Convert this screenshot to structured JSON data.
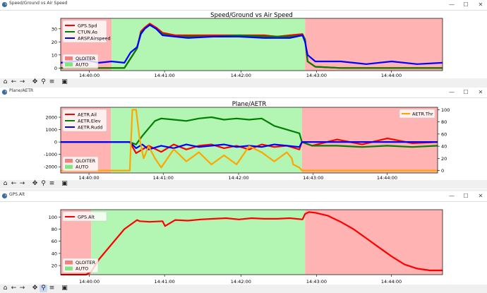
{
  "windows": [
    {
      "title": "Speed/Ground vs Air Speed",
      "chart_data": {
        "type": "line",
        "title": "Speed/Ground vs Air Speed",
        "x_ticks": [
          "14:40:00",
          "14:41:00",
          "14:42:00",
          "14:43:00",
          "14:44:00"
        ],
        "y_ticks": [
          0,
          10,
          20,
          30
        ],
        "ylim": [
          -2,
          38
        ],
        "xlim": [
          0,
          300
        ],
        "legend": [
          "GPS.Spd",
          "CTUN.As",
          "ARSP.Airspeed"
        ],
        "regions_legend": [
          "QLOITER",
          "AUTO"
        ],
        "regions": [
          {
            "mode": "QLOITER",
            "start": 0,
            "end": 40
          },
          {
            "mode": "AUTO",
            "start": 40,
            "end": 192
          },
          {
            "mode": "QLOITER",
            "start": 192,
            "end": 300
          }
        ],
        "series": [
          {
            "name": "GPS.Spd",
            "color": "#ff0000",
            "x": [
              0,
              40,
              50,
              60,
              63,
              66,
              70,
              75,
              80,
              90,
              100,
              120,
              140,
              160,
              170,
              180,
              190,
              192,
              194,
              200,
              220,
              240,
              260,
              280,
              300
            ],
            "y": [
              0,
              0,
              0,
              15,
              28,
              31,
              34,
              31,
              27,
              25,
              25,
              25,
              25,
              25,
              24,
              25,
              26,
              22,
              5,
              1,
              0,
              0,
              0,
              0,
              0
            ]
          },
          {
            "name": "CTUN.As",
            "color": "#008000",
            "x": [
              0,
              40,
              50,
              60,
              63,
              66,
              70,
              75,
              80,
              90,
              100,
              120,
              140,
              160,
              170,
              180,
              190,
              192,
              194,
              200,
              220,
              240,
              260,
              280,
              300
            ],
            "y": [
              0,
              0,
              0,
              15,
              27,
              30,
              33,
              30,
              26,
              24,
              24,
              24,
              25,
              24,
              24,
              24,
              25,
              22,
              5,
              1,
              0,
              0,
              0,
              0,
              0
            ]
          },
          {
            "name": "ARSP.Airspeed",
            "color": "#0000ff",
            "x": [
              0,
              10,
              20,
              30,
              40,
              50,
              55,
              60,
              63,
              66,
              70,
              75,
              80,
              90,
              100,
              120,
              140,
              160,
              170,
              180,
              190,
              192,
              194,
              200,
              220,
              240,
              260,
              280,
              300
            ],
            "y": [
              4,
              5,
              6,
              4,
              5,
              4,
              12,
              16,
              26,
              30,
              33,
              30,
              25,
              24,
              23,
              24,
              24,
              23,
              23,
              23,
              25,
              20,
              10,
              5,
              5,
              3,
              5,
              3,
              4
            ]
          }
        ]
      }
    },
    {
      "title": "Plane/AETR",
      "chart_data": {
        "type": "line",
        "title": "Plane/AETR",
        "x_ticks": [
          "14:40:00",
          "14:41:00",
          "14:42:00",
          "14:43:00",
          "14:44:00"
        ],
        "y_ticks": [
          -2000,
          -1000,
          0,
          1000,
          2000
        ],
        "y2_ticks": [
          0,
          20,
          40,
          60,
          80,
          100
        ],
        "ylim": [
          -2500,
          2800
        ],
        "y2lim": [
          -4,
          104
        ],
        "xlim": [
          0,
          300
        ],
        "legend": [
          "AETR.Ail",
          "AETR.Elev",
          "AETR.Rudd"
        ],
        "legend2": [
          "AETR.Thr"
        ],
        "regions_legend": [
          "QLOITER",
          "AUTO"
        ],
        "regions": [
          {
            "mode": "QLOITER",
            "start": 0,
            "end": 40
          },
          {
            "mode": "AUTO",
            "start": 40,
            "end": 192
          },
          {
            "mode": "QLOITER",
            "start": 192,
            "end": 300
          }
        ],
        "series": [
          {
            "name": "AETR.Ail",
            "color": "#ff0000",
            "axis": "left",
            "x": [
              0,
              40,
              55,
              60,
              65,
              70,
              80,
              90,
              100,
              110,
              120,
              130,
              140,
              150,
              160,
              170,
              180,
              190,
              192,
              200,
              220,
              240,
              260,
              280,
              300
            ],
            "y": [
              0,
              0,
              0,
              -900,
              -600,
              -300,
              -800,
              -200,
              -600,
              -300,
              -200,
              -500,
              -300,
              -600,
              -200,
              -400,
              -300,
              -600,
              0,
              -300,
              200,
              -200,
              300,
              -100,
              0
            ]
          },
          {
            "name": "AETR.Elev",
            "color": "#008000",
            "axis": "left",
            "x": [
              0,
              40,
              55,
              60,
              65,
              70,
              75,
              80,
              90,
              100,
              110,
              120,
              130,
              140,
              150,
              160,
              170,
              180,
              190,
              192,
              200,
              220,
              240,
              260,
              280,
              300
            ],
            "y": [
              0,
              0,
              0,
              -200,
              500,
              1100,
              1700,
              1900,
              1800,
              1700,
              1900,
              2000,
              1800,
              1900,
              1800,
              1900,
              1300,
              1000,
              700,
              0,
              -300,
              -300,
              -400,
              -300,
              -400,
              -300
            ]
          },
          {
            "name": "AETR.Rudd",
            "color": "#0000ff",
            "axis": "left",
            "x": [
              0,
              40,
              55,
              60,
              65,
              70,
              80,
              90,
              100,
              110,
              120,
              130,
              140,
              150,
              160,
              170,
              180,
              190,
              192,
              200,
              220,
              240,
              260,
              280,
              300
            ],
            "y": [
              0,
              0,
              0,
              -500,
              -200,
              -600,
              -300,
              -500,
              -200,
              -400,
              -300,
              -200,
              -400,
              -300,
              -400,
              -200,
              -300,
              -400,
              0,
              0,
              0,
              0,
              0,
              0,
              0
            ]
          }
        ],
        "series2": [
          {
            "name": "AETR.Thr",
            "color": "#ffa500",
            "axis": "right",
            "x": [
              0,
              40,
              55,
              57,
              59,
              60,
              63,
              66,
              70,
              75,
              80,
              90,
              100,
              110,
              120,
              130,
              140,
              150,
              160,
              170,
              180,
              184,
              185,
              190,
              192,
              195,
              200,
              300
            ],
            "y": [
              0,
              0,
              0,
              100,
              100,
              100,
              50,
              20,
              40,
              20,
              5,
              35,
              15,
              30,
              10,
              25,
              10,
              40,
              30,
              15,
              30,
              20,
              10,
              5,
              0,
              0,
              0,
              0
            ]
          }
        ]
      }
    },
    {
      "title": "GPS.Alt",
      "chart_data": {
        "type": "line",
        "x_ticks": [
          "14:40:00",
          "14:41:00",
          "14:42:00",
          "14:43:00",
          "14:44:00"
        ],
        "y_ticks": [
          20,
          40,
          60,
          80,
          100
        ],
        "ylim": [
          5,
          112
        ],
        "xlim": [
          0,
          300
        ],
        "legend": [
          "GPS.Alt"
        ],
        "regions_legend": [
          "QLOITER",
          "AUTO"
        ],
        "regions": [
          {
            "mode": "QLOITER",
            "start": 0,
            "end": 24
          },
          {
            "mode": "AUTO",
            "start": 24,
            "end": 192
          },
          {
            "mode": "QLOITER",
            "start": 192,
            "end": 300
          }
        ],
        "series": [
          {
            "name": "GPS.Alt",
            "color": "#ff0000",
            "x": [
              0,
              20,
              24,
              30,
              40,
              50,
              60,
              62,
              70,
              80,
              82,
              90,
              100,
              110,
              120,
              130,
              140,
              150,
              160,
              170,
              180,
              190,
              192,
              195,
              200,
              210,
              220,
              230,
              240,
              250,
              260,
              270,
              280,
              290,
              300
            ],
            "y": [
              5,
              5,
              10,
              30,
              55,
              80,
              95,
              93,
              92,
              93,
              85,
              95,
              94,
              96,
              97,
              98,
              96,
              98,
              97,
              97,
              98,
              96,
              105,
              108,
              107,
              102,
              92,
              80,
              65,
              50,
              35,
              22,
              15,
              12,
              12
            ]
          }
        ]
      }
    }
  ],
  "window_controls": {
    "minimize": "—",
    "maximize": "☐",
    "close": "✕"
  },
  "colors": {
    "qloiter": "#ffb3b3",
    "auto": "#b3f5b3"
  },
  "toolbar_icons": [
    "home-icon",
    "back-icon",
    "forward-icon",
    "pan-icon",
    "zoom-icon",
    "configure-icon",
    "save-icon"
  ]
}
